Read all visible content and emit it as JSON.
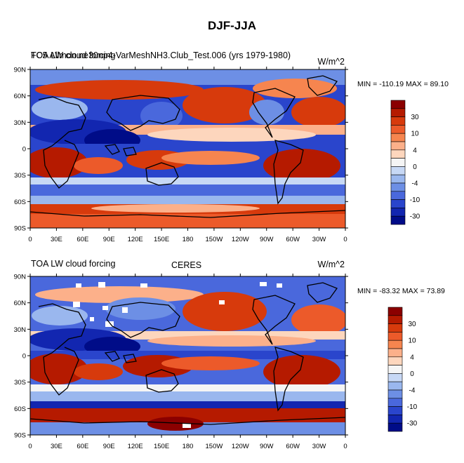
{
  "title": "DJF-JJA",
  "panels": [
    {
      "id": "model",
      "left_title_lines": [
        "TOA LW cloud forcing",
        "FC5 Allmon.ne30np4-VarMeshNH3.Club_Test.006 (yrs 1979-1980)"
      ],
      "center_title": "",
      "units": "W/m^2",
      "minmax": "MIN = -110.19 MAX =  89.10"
    },
    {
      "id": "obs",
      "left_title_lines": [
        "TOA LW cloud forcing"
      ],
      "center_title": "CERES",
      "units": "W/m^2",
      "minmax": "MIN = -83.32 MAX =  73.89"
    }
  ],
  "lat_labels": [
    "90N",
    "60N",
    "30N",
    "0",
    "30S",
    "60S",
    "90S"
  ],
  "lon_labels": [
    "0",
    "30E",
    "60E",
    "90E",
    "120E",
    "150E",
    "180",
    "150W",
    "120W",
    "90W",
    "60W",
    "30W",
    "0"
  ],
  "colorbar": {
    "labels": [
      "30",
      "10",
      "4",
      "0",
      "-4",
      "-10",
      "-30"
    ],
    "colors": [
      "#8b0000",
      "#b51a00",
      "#d73a0c",
      "#ec5a2a",
      "#f6854f",
      "#fcb08a",
      "#fdd6bd",
      "#f5f5f5",
      "#c7d8f5",
      "#9ab7ee",
      "#6d8fe5",
      "#4a68dc",
      "#2a45cc",
      "#1226b0",
      "#000c88"
    ]
  }
}
